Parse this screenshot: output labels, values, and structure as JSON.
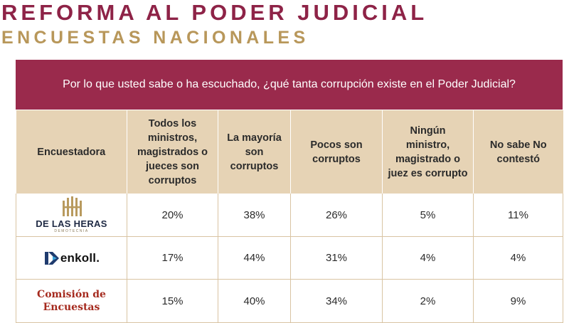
{
  "header": {
    "title": "REFORMA AL PODER JUDICIAL",
    "subtitle": "ENCUESTAS NACIONALES"
  },
  "question": "Por lo que usted sabe o ha escuchado, ¿qué tanta corrupción existe en el Poder Judicial?",
  "table": {
    "columns": [
      "Encuestadora",
      "Todos los ministros, magistrados o jueces son corruptos",
      "La mayoría son corruptos",
      "Pocos son corruptos",
      "Ningún ministro, magistrado o juez es corrupto",
      "No sabe No contestó"
    ],
    "rows": [
      {
        "pollster": "DE LAS HERAS",
        "pollster_sub": "DEMOTECNIA",
        "logo": "de-las-heras-logo",
        "values": [
          "20%",
          "38%",
          "26%",
          "5%",
          "11%"
        ]
      },
      {
        "pollster": "enkoll.",
        "logo": "enkoll-logo",
        "values": [
          "17%",
          "44%",
          "31%",
          "4%",
          "4%"
        ]
      },
      {
        "pollster": "Comisión de Encuestas",
        "logo": "comision-de-encuestas-logo",
        "values": [
          "15%",
          "40%",
          "34%",
          "2%",
          "9%"
        ]
      }
    ]
  },
  "colors": {
    "title": "#8e2347",
    "subtitle": "#b8975a",
    "question_bg": "#9a2a4c",
    "header_bg": "#e6d3b5",
    "border": "#d9c4a3"
  }
}
